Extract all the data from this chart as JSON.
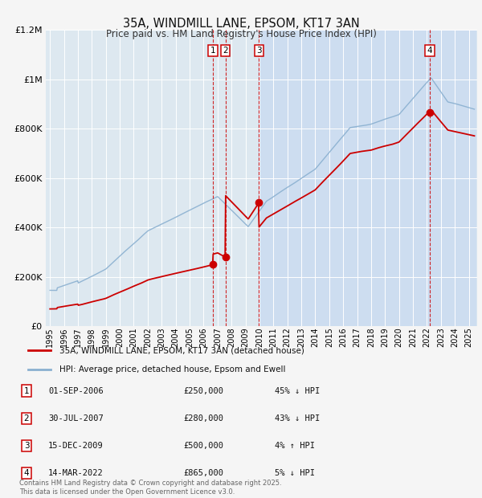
{
  "title": "35A, WINDMILL LANE, EPSOM, KT17 3AN",
  "subtitle": "Price paid vs. HM Land Registry's House Price Index (HPI)",
  "x_start_year": 1995,
  "x_end_year": 2025,
  "y_min": 0,
  "y_max": 1200000,
  "y_ticks": [
    0,
    200000,
    400000,
    600000,
    800000,
    1000000,
    1200000
  ],
  "y_tick_labels": [
    "£0",
    "£200K",
    "£400K",
    "£600K",
    "£800K",
    "£1M",
    "£1.2M"
  ],
  "background_color": "#f5f5f5",
  "plot_bg_color": "#dde8f0",
  "shade_color": "#cdddf0",
  "grid_color": "#ffffff",
  "red_line_color": "#cc0000",
  "blue_line_color": "#8ab0d0",
  "transactions": [
    {
      "id": 1,
      "year": 2006.67,
      "price": 250000,
      "date": "01-SEP-2006",
      "pct": "45%",
      "dir": "↓"
    },
    {
      "id": 2,
      "year": 2007.58,
      "price": 280000,
      "date": "30-JUL-2007",
      "pct": "43%",
      "dir": "↓"
    },
    {
      "id": 3,
      "year": 2009.96,
      "price": 500000,
      "date": "15-DEC-2009",
      "pct": "4%",
      "dir": "↑"
    },
    {
      "id": 4,
      "year": 2022.2,
      "price": 865000,
      "date": "14-MAR-2022",
      "pct": "5%",
      "dir": "↓"
    }
  ],
  "legend_red": "35A, WINDMILL LANE, EPSOM, KT17 3AN (detached house)",
  "legend_blue": "HPI: Average price, detached house, Epsom and Ewell",
  "footer": "Contains HM Land Registry data © Crown copyright and database right 2025.\nThis data is licensed under the Open Government Licence v3.0."
}
